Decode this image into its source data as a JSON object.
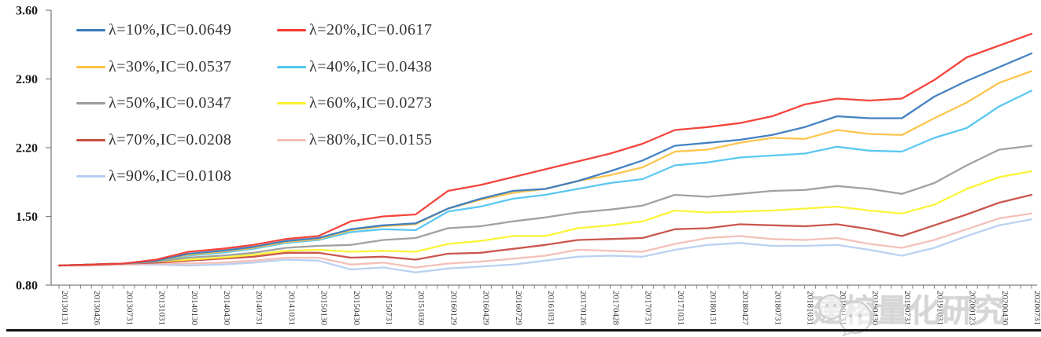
{
  "watermark": {
    "text": "建榕量化研究",
    "icon": "wechat-icon",
    "color": "#c9c9c9"
  },
  "axes": {
    "ytick_labels": [
      "3.60",
      "2.90",
      "2.20",
      "1.50",
      "0.80"
    ],
    "ytick_values": [
      3.6,
      2.9,
      2.2,
      1.5,
      0.8
    ]
  },
  "chart_data": {
    "type": "line",
    "title": "",
    "xlabel": "",
    "ylabel": "",
    "ylim": [
      0.8,
      3.6
    ],
    "yticks": [
      0.8,
      1.5,
      2.2,
      2.9,
      3.6
    ],
    "grid": false,
    "legend_position": "top-left",
    "x": [
      "20130131",
      "20130426",
      "20130731",
      "20131031",
      "20140130",
      "20140430",
      "20140731",
      "20141031",
      "20150130",
      "20150430",
      "20150731",
      "20151030",
      "20160129",
      "20160429",
      "20160729",
      "20161031",
      "20170126",
      "20170428",
      "20170731",
      "20171031",
      "20180131",
      "20180427",
      "20180731",
      "20181031",
      "20190131",
      "20190430",
      "20190731",
      "20191031",
      "20200123",
      "20200430",
      "20200731"
    ],
    "series": [
      {
        "name": "λ=10%,IC=0.0649",
        "color": "#3a7abf",
        "values": [
          1.0,
          1.01,
          1.02,
          1.05,
          1.12,
          1.15,
          1.19,
          1.25,
          1.28,
          1.37,
          1.41,
          1.43,
          1.58,
          1.68,
          1.76,
          1.78,
          1.86,
          1.96,
          2.07,
          2.22,
          2.25,
          2.28,
          2.33,
          2.41,
          2.52,
          2.5,
          2.5,
          2.72,
          2.88,
          3.02,
          3.16
        ]
      },
      {
        "name": "λ=20%,IC=0.0617",
        "color": "#f23b32",
        "values": [
          1.0,
          1.01,
          1.02,
          1.06,
          1.14,
          1.17,
          1.21,
          1.27,
          1.3,
          1.45,
          1.5,
          1.52,
          1.76,
          1.82,
          1.9,
          1.98,
          2.06,
          2.14,
          2.24,
          2.38,
          2.41,
          2.45,
          2.52,
          2.64,
          2.7,
          2.68,
          2.7,
          2.89,
          3.12,
          3.24,
          3.36
        ]
      },
      {
        "name": "λ=30%,IC=0.0537",
        "color": "#fdc245",
        "values": [
          1.0,
          1.01,
          1.02,
          1.05,
          1.11,
          1.14,
          1.18,
          1.24,
          1.27,
          1.36,
          1.4,
          1.42,
          1.58,
          1.67,
          1.74,
          1.78,
          1.86,
          1.92,
          2.0,
          2.16,
          2.18,
          2.25,
          2.3,
          2.29,
          2.38,
          2.34,
          2.33,
          2.5,
          2.66,
          2.86,
          2.98
        ]
      },
      {
        "name": "λ=40%,IC=0.0438",
        "color": "#52c5f0",
        "values": [
          1.0,
          1.01,
          1.02,
          1.05,
          1.1,
          1.13,
          1.17,
          1.23,
          1.26,
          1.34,
          1.37,
          1.36,
          1.55,
          1.6,
          1.68,
          1.72,
          1.78,
          1.84,
          1.88,
          2.02,
          2.05,
          2.1,
          2.12,
          2.14,
          2.21,
          2.17,
          2.16,
          2.3,
          2.4,
          2.62,
          2.78
        ]
      },
      {
        "name": "λ=50%,IC=0.0347",
        "color": "#9c9c9c",
        "values": [
          1.0,
          1.01,
          1.02,
          1.04,
          1.08,
          1.1,
          1.13,
          1.18,
          1.2,
          1.21,
          1.26,
          1.28,
          1.38,
          1.4,
          1.45,
          1.49,
          1.54,
          1.57,
          1.61,
          1.72,
          1.7,
          1.73,
          1.76,
          1.77,
          1.81,
          1.78,
          1.73,
          1.84,
          2.02,
          2.18,
          2.22
        ]
      },
      {
        "name": "λ=60%,IC=0.0273",
        "color": "#fbf32e",
        "values": [
          1.0,
          1.01,
          1.02,
          1.04,
          1.06,
          1.08,
          1.11,
          1.15,
          1.16,
          1.14,
          1.15,
          1.14,
          1.22,
          1.25,
          1.3,
          1.3,
          1.38,
          1.41,
          1.45,
          1.56,
          1.54,
          1.55,
          1.56,
          1.58,
          1.6,
          1.56,
          1.53,
          1.62,
          1.78,
          1.9,
          1.96
        ]
      },
      {
        "name": "λ=70%,IC=0.0208",
        "color": "#c74e44",
        "values": [
          1.0,
          1.01,
          1.02,
          1.03,
          1.05,
          1.07,
          1.09,
          1.13,
          1.13,
          1.08,
          1.09,
          1.06,
          1.12,
          1.13,
          1.17,
          1.21,
          1.26,
          1.27,
          1.28,
          1.37,
          1.38,
          1.42,
          1.41,
          1.4,
          1.42,
          1.37,
          1.3,
          1.41,
          1.52,
          1.64,
          1.72
        ]
      },
      {
        "name": "λ=80%,IC=0.0155",
        "color": "#f2bdb4",
        "values": [
          1.0,
          1.0,
          1.01,
          1.02,
          1.02,
          1.03,
          1.05,
          1.08,
          1.08,
          1.01,
          1.03,
          0.98,
          1.02,
          1.04,
          1.07,
          1.1,
          1.16,
          1.15,
          1.14,
          1.22,
          1.28,
          1.3,
          1.27,
          1.26,
          1.28,
          1.22,
          1.18,
          1.26,
          1.37,
          1.48,
          1.53
        ]
      },
      {
        "name": "λ=90%,IC=0.0108",
        "color": "#b6cff0",
        "values": [
          1.0,
          1.0,
          1.01,
          1.01,
          1.0,
          1.01,
          1.03,
          1.06,
          1.05,
          0.96,
          0.98,
          0.93,
          0.97,
          0.99,
          1.01,
          1.05,
          1.09,
          1.1,
          1.09,
          1.16,
          1.21,
          1.23,
          1.2,
          1.2,
          1.21,
          1.16,
          1.1,
          1.18,
          1.3,
          1.41,
          1.47
        ]
      }
    ]
  }
}
